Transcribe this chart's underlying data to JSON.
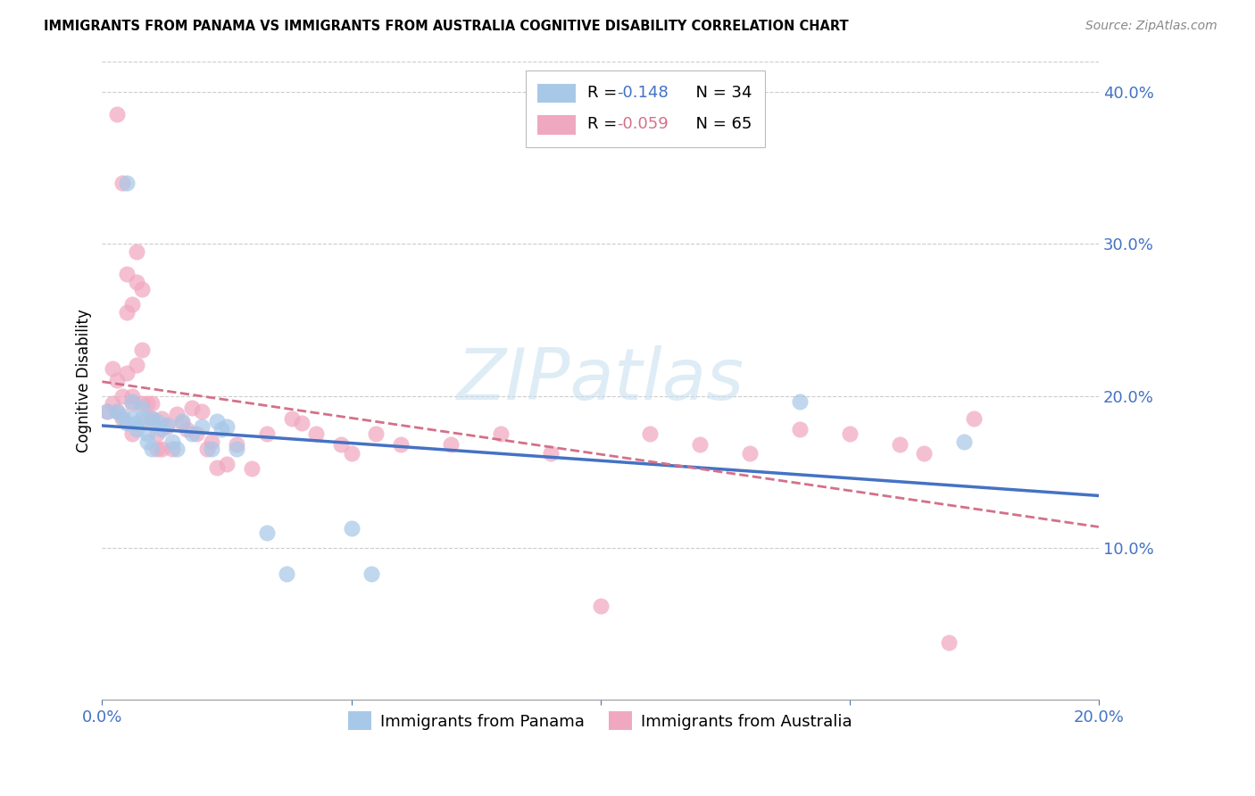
{
  "title": "IMMIGRANTS FROM PANAMA VS IMMIGRANTS FROM AUSTRALIA COGNITIVE DISABILITY CORRELATION CHART",
  "source": "Source: ZipAtlas.com",
  "ylabel": "Cognitive Disability",
  "watermark": "ZIPatlas",
  "xlim": [
    0.0,
    0.2
  ],
  "ylim": [
    0.0,
    0.42
  ],
  "x_ticks": [
    0.0,
    0.05,
    0.1,
    0.15,
    0.2
  ],
  "x_tick_labels": [
    "0.0%",
    "",
    "",
    "",
    "20.0%"
  ],
  "y_ticks_right": [
    0.1,
    0.2,
    0.3,
    0.4
  ],
  "y_tick_labels_right": [
    "10.0%",
    "20.0%",
    "30.0%",
    "40.0%"
  ],
  "legend_r1": "R = ",
  "legend_v1": "-0.148",
  "legend_n1": "N = 34",
  "legend_r2": "R = ",
  "legend_v2": "-0.059",
  "legend_n2": "N = 65",
  "color_panama": "#a8c8e8",
  "color_australia": "#f0a8c0",
  "color_line_panama": "#4472c4",
  "color_line_australia": "#d4708a",
  "color_axis_labels": "#4472c4",
  "panama_x": [
    0.001,
    0.003,
    0.004,
    0.005,
    0.005,
    0.006,
    0.006,
    0.007,
    0.007,
    0.008,
    0.008,
    0.009,
    0.009,
    0.01,
    0.01,
    0.011,
    0.012,
    0.013,
    0.014,
    0.015,
    0.016,
    0.018,
    0.02,
    0.022,
    0.023,
    0.024,
    0.025,
    0.027,
    0.033,
    0.037,
    0.05,
    0.054,
    0.14,
    0.173
  ],
  "panama_y": [
    0.19,
    0.19,
    0.187,
    0.34,
    0.182,
    0.196,
    0.185,
    0.182,
    0.178,
    0.192,
    0.185,
    0.175,
    0.17,
    0.185,
    0.165,
    0.183,
    0.178,
    0.181,
    0.17,
    0.165,
    0.183,
    0.175,
    0.18,
    0.165,
    0.183,
    0.178,
    0.18,
    0.165,
    0.11,
    0.083,
    0.113,
    0.083,
    0.196,
    0.17
  ],
  "australia_x": [
    0.001,
    0.002,
    0.002,
    0.003,
    0.003,
    0.004,
    0.004,
    0.005,
    0.005,
    0.006,
    0.006,
    0.006,
    0.007,
    0.007,
    0.008,
    0.008,
    0.008,
    0.009,
    0.009,
    0.01,
    0.01,
    0.011,
    0.011,
    0.012,
    0.012,
    0.013,
    0.014,
    0.015,
    0.016,
    0.017,
    0.018,
    0.019,
    0.02,
    0.021,
    0.022,
    0.023,
    0.025,
    0.027,
    0.03,
    0.033,
    0.038,
    0.04,
    0.043,
    0.048,
    0.05,
    0.055,
    0.06,
    0.07,
    0.08,
    0.09,
    0.1,
    0.11,
    0.12,
    0.13,
    0.14,
    0.15,
    0.16,
    0.165,
    0.17,
    0.175,
    0.003,
    0.004,
    0.005,
    0.006,
    0.007
  ],
  "australia_y": [
    0.19,
    0.218,
    0.195,
    0.21,
    0.19,
    0.2,
    0.185,
    0.255,
    0.28,
    0.175,
    0.2,
    0.195,
    0.295,
    0.275,
    0.27,
    0.23,
    0.195,
    0.195,
    0.185,
    0.195,
    0.185,
    0.175,
    0.165,
    0.185,
    0.165,
    0.18,
    0.165,
    0.188,
    0.182,
    0.178,
    0.192,
    0.175,
    0.19,
    0.165,
    0.17,
    0.153,
    0.155,
    0.168,
    0.152,
    0.175,
    0.185,
    0.182,
    0.175,
    0.168,
    0.162,
    0.175,
    0.168,
    0.168,
    0.175,
    0.162,
    0.062,
    0.175,
    0.168,
    0.162,
    0.178,
    0.175,
    0.168,
    0.162,
    0.038,
    0.185,
    0.385,
    0.34,
    0.215,
    0.26,
    0.22
  ]
}
